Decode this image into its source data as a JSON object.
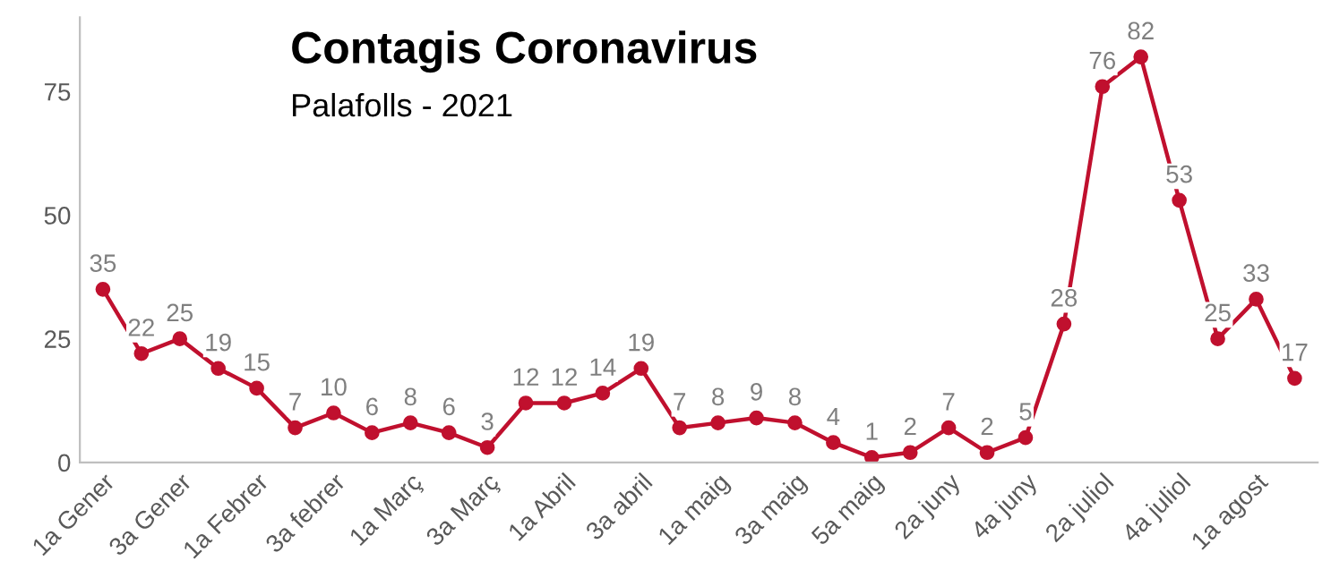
{
  "chart_data": {
    "type": "line",
    "title": "Contagis Coronavirus",
    "subtitle": "Palafolls - 2021",
    "categories": [
      "1a Gener",
      null,
      "3a Gener",
      null,
      "1a Febrer",
      null,
      "3a febrer",
      null,
      "1a Març",
      null,
      "3a Març",
      null,
      "1a Abril",
      null,
      "3a abril",
      null,
      "1a maig",
      null,
      "3a maig",
      null,
      "5a maig",
      null,
      "2a juny",
      null,
      "4a juny",
      null,
      "2a juliol",
      null,
      "4a juliol",
      null,
      "1a agost",
      null
    ],
    "series": [
      {
        "color": "#c0102e",
        "values": [
          35,
          22,
          25,
          19,
          15,
          7,
          10,
          6,
          8,
          6,
          3,
          12,
          12,
          14,
          19,
          7,
          8,
          9,
          8,
          4,
          1,
          2,
          7,
          2,
          5,
          28,
          76,
          82,
          53,
          25,
          33,
          17
        ]
      }
    ],
    "ylim": [
      0,
      90
    ],
    "yticks": [
      0,
      25,
      50,
      75
    ],
    "grid": false,
    "legend": false,
    "marker": "circle",
    "line_style": "solid",
    "data_labels": true
  }
}
